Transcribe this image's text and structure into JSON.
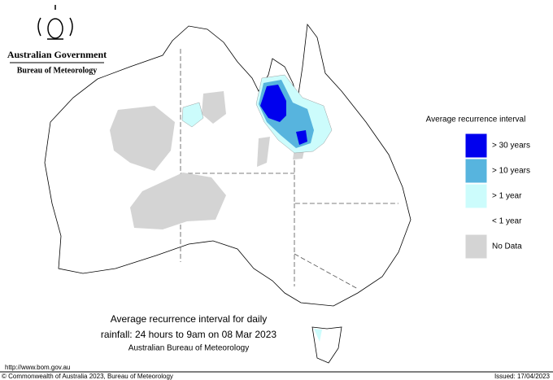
{
  "header": {
    "government": "Australian Government",
    "agency": "Bureau of Meteorology"
  },
  "legend": {
    "title": "Average recurrence interval",
    "items": [
      {
        "label": "> 30 years",
        "color": "#0000ee"
      },
      {
        "label": "> 10 years",
        "color": "#57b4de"
      },
      {
        "label": "> 1 year",
        "color": "#ccfcfc"
      },
      {
        "label": "< 1 year",
        "color": "#ffffff"
      },
      {
        "label": "No Data",
        "color": "#d4d4d4"
      }
    ]
  },
  "caption": {
    "line1": "Average recurrence interval for daily",
    "line2": "rainfall: 24 hours to 9am on 08 Mar 2023",
    "line3": "Australian Bureau of Meteorology"
  },
  "footer": {
    "url": "http://www.bom.gov.au",
    "copyright": "© Commonwealth of Australia 2023, Bureau of Meteorology",
    "issued": "Issued: 17/04/2023"
  }
}
